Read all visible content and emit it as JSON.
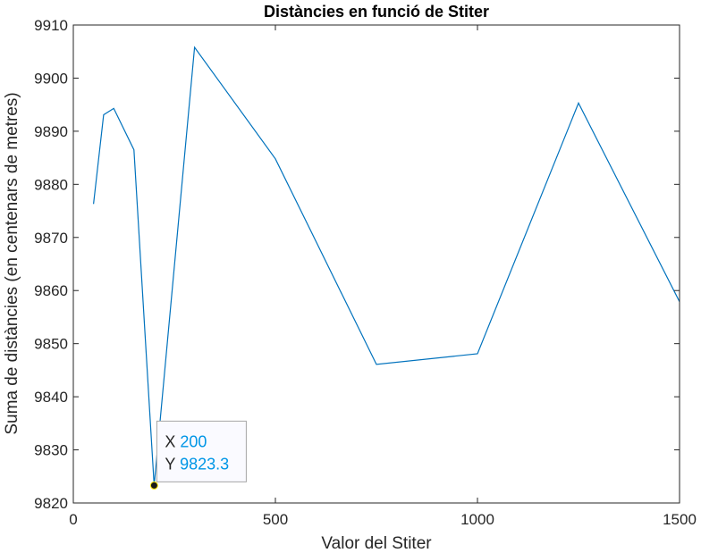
{
  "chart_data": {
    "type": "line",
    "title": "Distàncies en funció de Stiter",
    "xlabel": "Valor del Stiter",
    "ylabel": "Suma de distàncies (en centenars de metres)",
    "xlim": [
      0,
      1500
    ],
    "ylim": [
      9820,
      9910
    ],
    "xticks": [
      0,
      500,
      1000,
      1500
    ],
    "yticks": [
      9820,
      9830,
      9840,
      9850,
      9860,
      9870,
      9880,
      9890,
      9900,
      9910
    ],
    "grid": false,
    "series": [
      {
        "color": "#0072BD",
        "x": [
          50,
          75,
          100,
          150,
          200,
          300,
          500,
          750,
          1000,
          1250,
          1500
        ],
        "y": [
          9876.3,
          9893.1,
          9894.3,
          9886.5,
          9823.3,
          9905.8,
          9884.8,
          9846.1,
          9848.1,
          9895.3,
          9857.9
        ]
      }
    ],
    "datatip": {
      "x_label": "X",
      "x_value": "200",
      "y_label": "Y",
      "y_value": "9823.3",
      "x": 200,
      "y": 9823.3,
      "value_color": "#0096E6"
    }
  }
}
